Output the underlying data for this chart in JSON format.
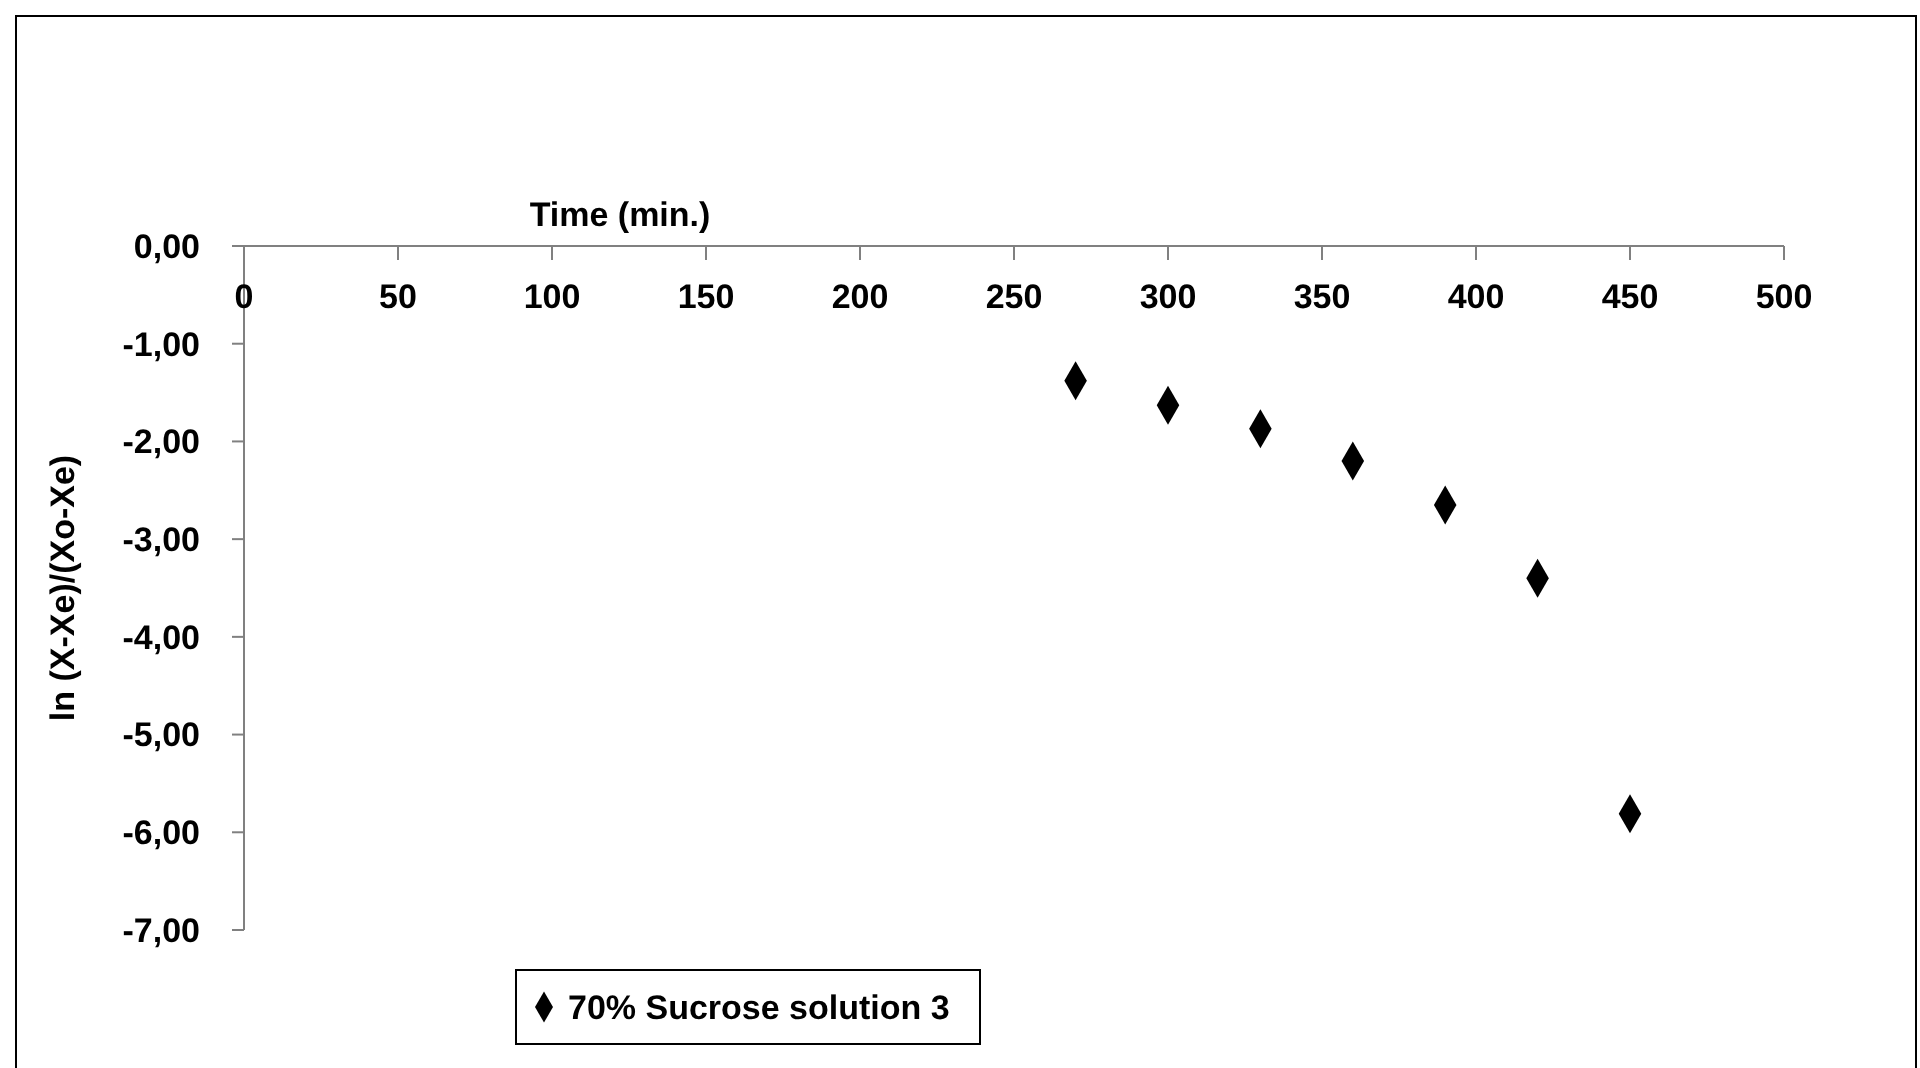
{
  "chart_data": {
    "type": "scatter",
    "xlabel": "Time (min.)",
    "ylabel": "ln (X-Xe)/(Xo-Xe)",
    "xlim": [
      0,
      500
    ],
    "xticks": [
      0,
      50,
      100,
      150,
      200,
      250,
      300,
      350,
      400,
      450,
      500
    ],
    "ylim": [
      -7,
      0
    ],
    "yticks": [
      {
        "value": 0,
        "label": "0,00"
      },
      {
        "value": -1,
        "label": "-1,00"
      },
      {
        "value": -2,
        "label": "-2,00"
      },
      {
        "value": -3,
        "label": "-3,00"
      },
      {
        "value": -4,
        "label": "-4,00"
      },
      {
        "value": -5,
        "label": "-5,00"
      },
      {
        "value": -6,
        "label": "-6,00"
      },
      {
        "value": -7,
        "label": "-7,00"
      }
    ],
    "x": [
      270,
      300,
      330,
      360,
      390,
      420,
      450
    ],
    "series": [
      {
        "name": "70% Sucrose solution 3",
        "color": "#000000",
        "values": [
          -1.38,
          -1.63,
          -1.87,
          -2.2,
          -2.65,
          -3.4,
          -5.81
        ]
      }
    ],
    "marker": "diamond",
    "grid": false,
    "legend": "bottom left"
  }
}
